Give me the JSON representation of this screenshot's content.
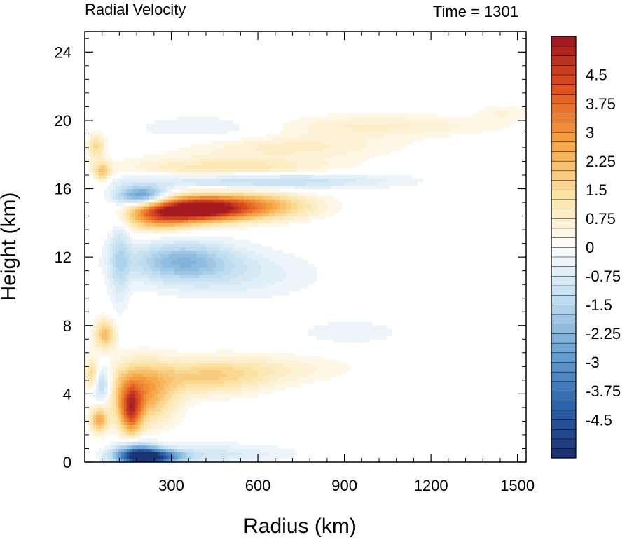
{
  "chart_data": {
    "type": "heatmap",
    "title_left": "Radial Velocity",
    "title_right": "Time = 1301",
    "xlabel": "Radius (km)",
    "ylabel": "Height (km)",
    "xlim": [
      0,
      1530
    ],
    "ylim": [
      0,
      25.2
    ],
    "xticks": [
      300,
      600,
      900,
      1200,
      1500
    ],
    "xtick_labels": [
      "300",
      "600",
      "900",
      "1200",
      "1500"
    ],
    "yticks": [
      0,
      4,
      8,
      12,
      16,
      20,
      24
    ],
    "ytick_labels": [
      "0",
      "4",
      "8",
      "12",
      "16",
      "20",
      "24"
    ],
    "colorbar": {
      "min": -5.5,
      "max": 5.5,
      "levels": 44,
      "tick_values": [
        4.5,
        3.75,
        3,
        2.25,
        1.5,
        0.75,
        0,
        -0.75,
        -1.5,
        -2.25,
        -3,
        -3.75,
        -4.5
      ],
      "tick_labels": [
        "4.5",
        "3.75",
        "3",
        "2.25",
        "1.5",
        "0.75",
        "0",
        "-0.75",
        "-1.5",
        "-2.25",
        "-3",
        "-3.75",
        "-4.5"
      ],
      "colormap": [
        "#1a2f6e",
        "#2b63ad",
        "#6aa3d2",
        "#bddcef",
        "#ffffff",
        "#fbe3a3",
        "#f5a441",
        "#e1541f",
        "#9e1420"
      ]
    },
    "features": [
      {
        "r": 380,
        "z": 14.8,
        "v": 5.0,
        "sr": 110,
        "sz": 0.5
      },
      {
        "r": 560,
        "z": 15.0,
        "v": 3.0,
        "sr": 150,
        "sz": 0.55
      },
      {
        "r": 250,
        "z": 14.4,
        "v": 2.6,
        "sr": 80,
        "sz": 0.6
      },
      {
        "r": 200,
        "z": 15.6,
        "v": -3.2,
        "sr": 60,
        "sz": 0.4
      },
      {
        "r": 600,
        "z": 16.5,
        "v": -1.6,
        "sr": 300,
        "sz": 0.35
      },
      {
        "r": 500,
        "z": 17.2,
        "v": 1.3,
        "sr": 250,
        "sz": 0.45
      },
      {
        "r": 700,
        "z": 18.5,
        "v": 0.9,
        "sr": 250,
        "sz": 0.5
      },
      {
        "r": 1000,
        "z": 19.7,
        "v": 0.8,
        "sr": 300,
        "sz": 0.45
      },
      {
        "r": 450,
        "z": 19.5,
        "v": -0.6,
        "sr": 200,
        "sz": 0.6
      },
      {
        "r": 330,
        "z": 11.8,
        "v": -2.0,
        "sr": 130,
        "sz": 0.8
      },
      {
        "r": 520,
        "z": 11.0,
        "v": -0.7,
        "sr": 200,
        "sz": 1.0
      },
      {
        "r": 920,
        "z": 7.6,
        "v": -0.4,
        "sr": 150,
        "sz": 0.6
      },
      {
        "r": 190,
        "z": 4.0,
        "v": 2.8,
        "sr": 80,
        "sz": 1.2
      },
      {
        "r": 160,
        "z": 3.0,
        "v": 3.2,
        "sr": 25,
        "sz": 1.0
      },
      {
        "r": 420,
        "z": 5.0,
        "v": 1.6,
        "sr": 150,
        "sz": 0.7
      },
      {
        "r": 650,
        "z": 5.5,
        "v": 0.6,
        "sr": 200,
        "sz": 0.6
      },
      {
        "r": 230,
        "z": 0.3,
        "v": -4.5,
        "sr": 70,
        "sz": 0.3
      },
      {
        "r": 180,
        "z": 0.5,
        "v": -3.0,
        "sr": 50,
        "sz": 0.5
      },
      {
        "r": 420,
        "z": 0.5,
        "v": -0.9,
        "sr": 200,
        "sz": 0.4
      },
      {
        "r": 70,
        "z": 7.5,
        "v": 2.2,
        "sr": 25,
        "sz": 0.6
      },
      {
        "r": 60,
        "z": 4.5,
        "v": -2.0,
        "sr": 25,
        "sz": 0.8
      },
      {
        "r": 50,
        "z": 2.5,
        "v": 2.5,
        "sr": 20,
        "sz": 0.5
      },
      {
        "r": 25,
        "z": 5.2,
        "v": 1.8,
        "sr": 15,
        "sz": 0.6
      },
      {
        "r": 60,
        "z": 17.0,
        "v": 2.0,
        "sr": 20,
        "sz": 0.4
      },
      {
        "r": 40,
        "z": 18.5,
        "v": 1.6,
        "sr": 20,
        "sz": 0.5
      },
      {
        "r": 120,
        "z": 12.0,
        "v": -1.1,
        "sr": 25,
        "sz": 2.0
      },
      {
        "r": 1450,
        "z": 20.5,
        "v": 0.5,
        "sr": 60,
        "sz": 0.3
      }
    ]
  }
}
